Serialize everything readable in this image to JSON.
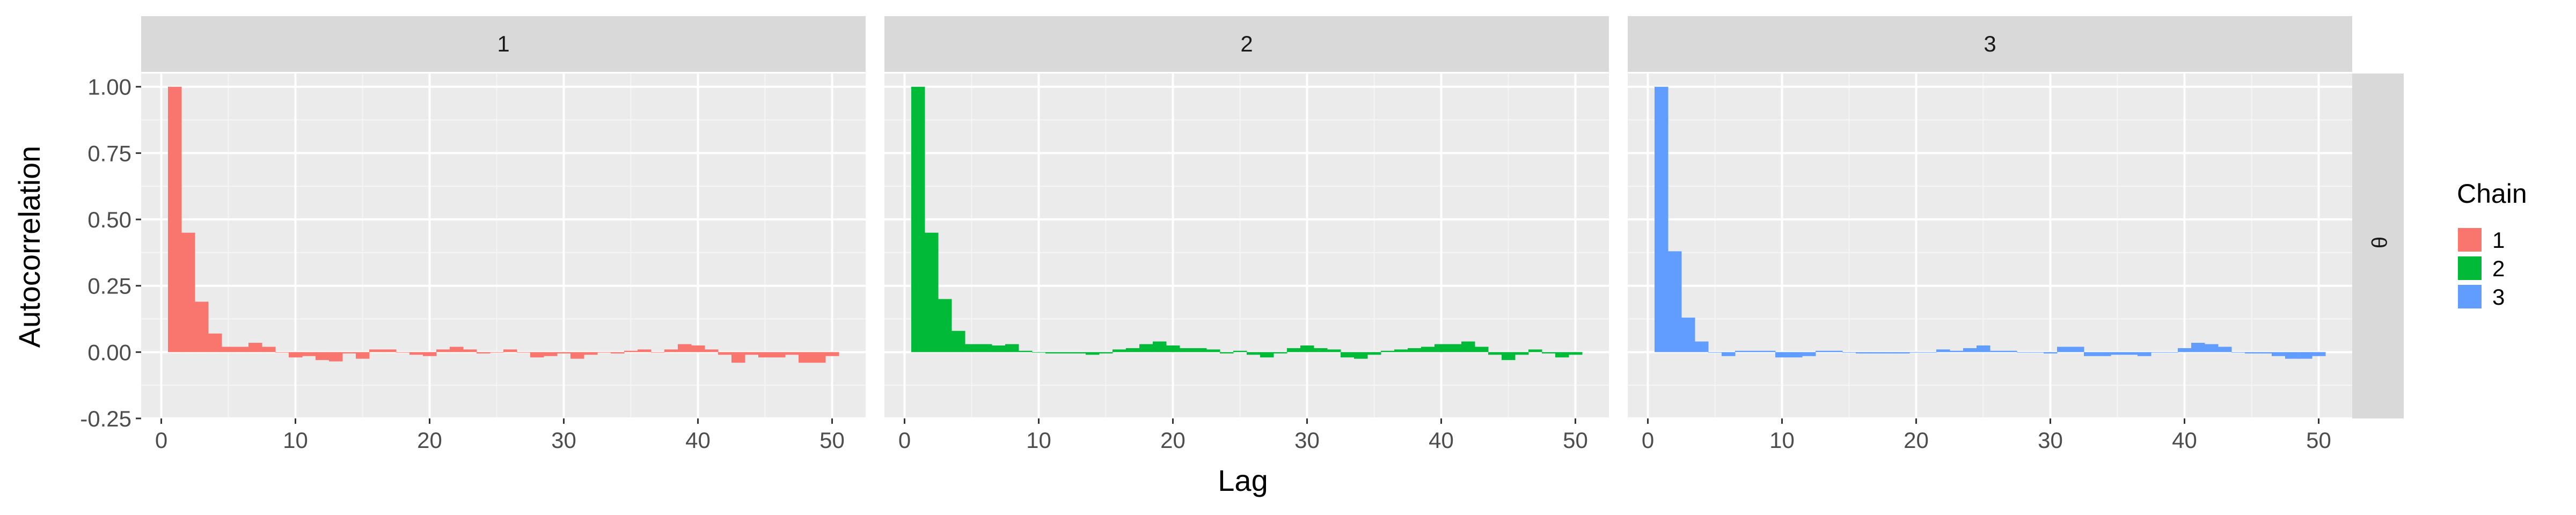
{
  "chart_data": {
    "type": "bar",
    "facet_row_label": "θ",
    "panel_labels": [
      "1",
      "2",
      "3"
    ],
    "xlabel": "Lag",
    "ylabel": "Autocorrelation",
    "xlim": [
      -1.5,
      52.5
    ],
    "ylim": [
      -0.25,
      1.05
    ],
    "x_ticks": [
      0,
      10,
      20,
      30,
      40,
      50
    ],
    "x_tick_labels": [
      "0",
      "10",
      "20",
      "30",
      "40",
      "50"
    ],
    "y_ticks": [
      -0.25,
      0,
      0.25,
      0.5,
      0.75,
      1
    ],
    "y_tick_labels": [
      "-0.25",
      "0.00",
      "0.25",
      "0.50",
      "0.75",
      "1.00"
    ],
    "lags": [
      1,
      2,
      3,
      4,
      5,
      6,
      7,
      8,
      9,
      10,
      11,
      12,
      13,
      14,
      15,
      16,
      17,
      18,
      19,
      20,
      21,
      22,
      23,
      24,
      25,
      26,
      27,
      28,
      29,
      30,
      31,
      32,
      33,
      34,
      35,
      36,
      37,
      38,
      39,
      40,
      41,
      42,
      43,
      44,
      45,
      46,
      47,
      48,
      49,
      50
    ],
    "legend": {
      "title": "Chain",
      "position": "right"
    },
    "series": [
      {
        "name": "1",
        "color": "#F8766D",
        "values": [
          1.0,
          0.45,
          0.19,
          0.07,
          0.02,
          0.02,
          0.035,
          0.02,
          0.0,
          -0.02,
          -0.015,
          -0.03,
          -0.035,
          -0.005,
          -0.025,
          0.01,
          0.01,
          0.0,
          -0.01,
          -0.015,
          0.01,
          0.02,
          0.01,
          -0.005,
          0.0,
          0.01,
          0.0,
          -0.02,
          -0.015,
          -0.005,
          -0.025,
          -0.01,
          0.0,
          -0.005,
          0.005,
          0.01,
          0.0,
          0.01,
          0.03,
          0.025,
          0.01,
          -0.01,
          -0.04,
          -0.01,
          -0.02,
          -0.02,
          -0.01,
          -0.04,
          -0.04,
          -0.015
        ]
      },
      {
        "name": "2",
        "color": "#00BA38",
        "values": [
          1.0,
          0.45,
          0.2,
          0.08,
          0.03,
          0.03,
          0.025,
          0.03,
          0.005,
          0.0,
          -0.005,
          -0.005,
          -0.005,
          -0.01,
          -0.005,
          0.01,
          0.015,
          0.03,
          0.04,
          0.025,
          0.015,
          0.015,
          0.01,
          -0.005,
          0.005,
          -0.01,
          -0.02,
          -0.005,
          0.015,
          0.025,
          0.015,
          0.01,
          -0.02,
          -0.025,
          -0.01,
          0.005,
          0.01,
          0.015,
          0.02,
          0.03,
          0.03,
          0.04,
          0.02,
          -0.01,
          -0.03,
          -0.01,
          0.01,
          -0.005,
          -0.02,
          -0.01
        ]
      },
      {
        "name": "3",
        "color": "#619CFF",
        "values": [
          1.0,
          0.38,
          0.13,
          0.04,
          0.0,
          -0.015,
          0.005,
          0.005,
          0.005,
          -0.02,
          -0.02,
          -0.015,
          0.005,
          0.005,
          0.0,
          -0.005,
          -0.005,
          -0.005,
          -0.005,
          0.0,
          0.0,
          0.01,
          0.005,
          0.015,
          0.025,
          0.005,
          0.005,
          0.0,
          0.0,
          -0.005,
          0.02,
          0.02,
          -0.015,
          -0.015,
          -0.01,
          -0.01,
          -0.015,
          0.0,
          0.0,
          0.015,
          0.035,
          0.03,
          0.02,
          0.0,
          -0.005,
          -0.005,
          -0.015,
          -0.025,
          -0.025,
          -0.015
        ]
      }
    ]
  }
}
